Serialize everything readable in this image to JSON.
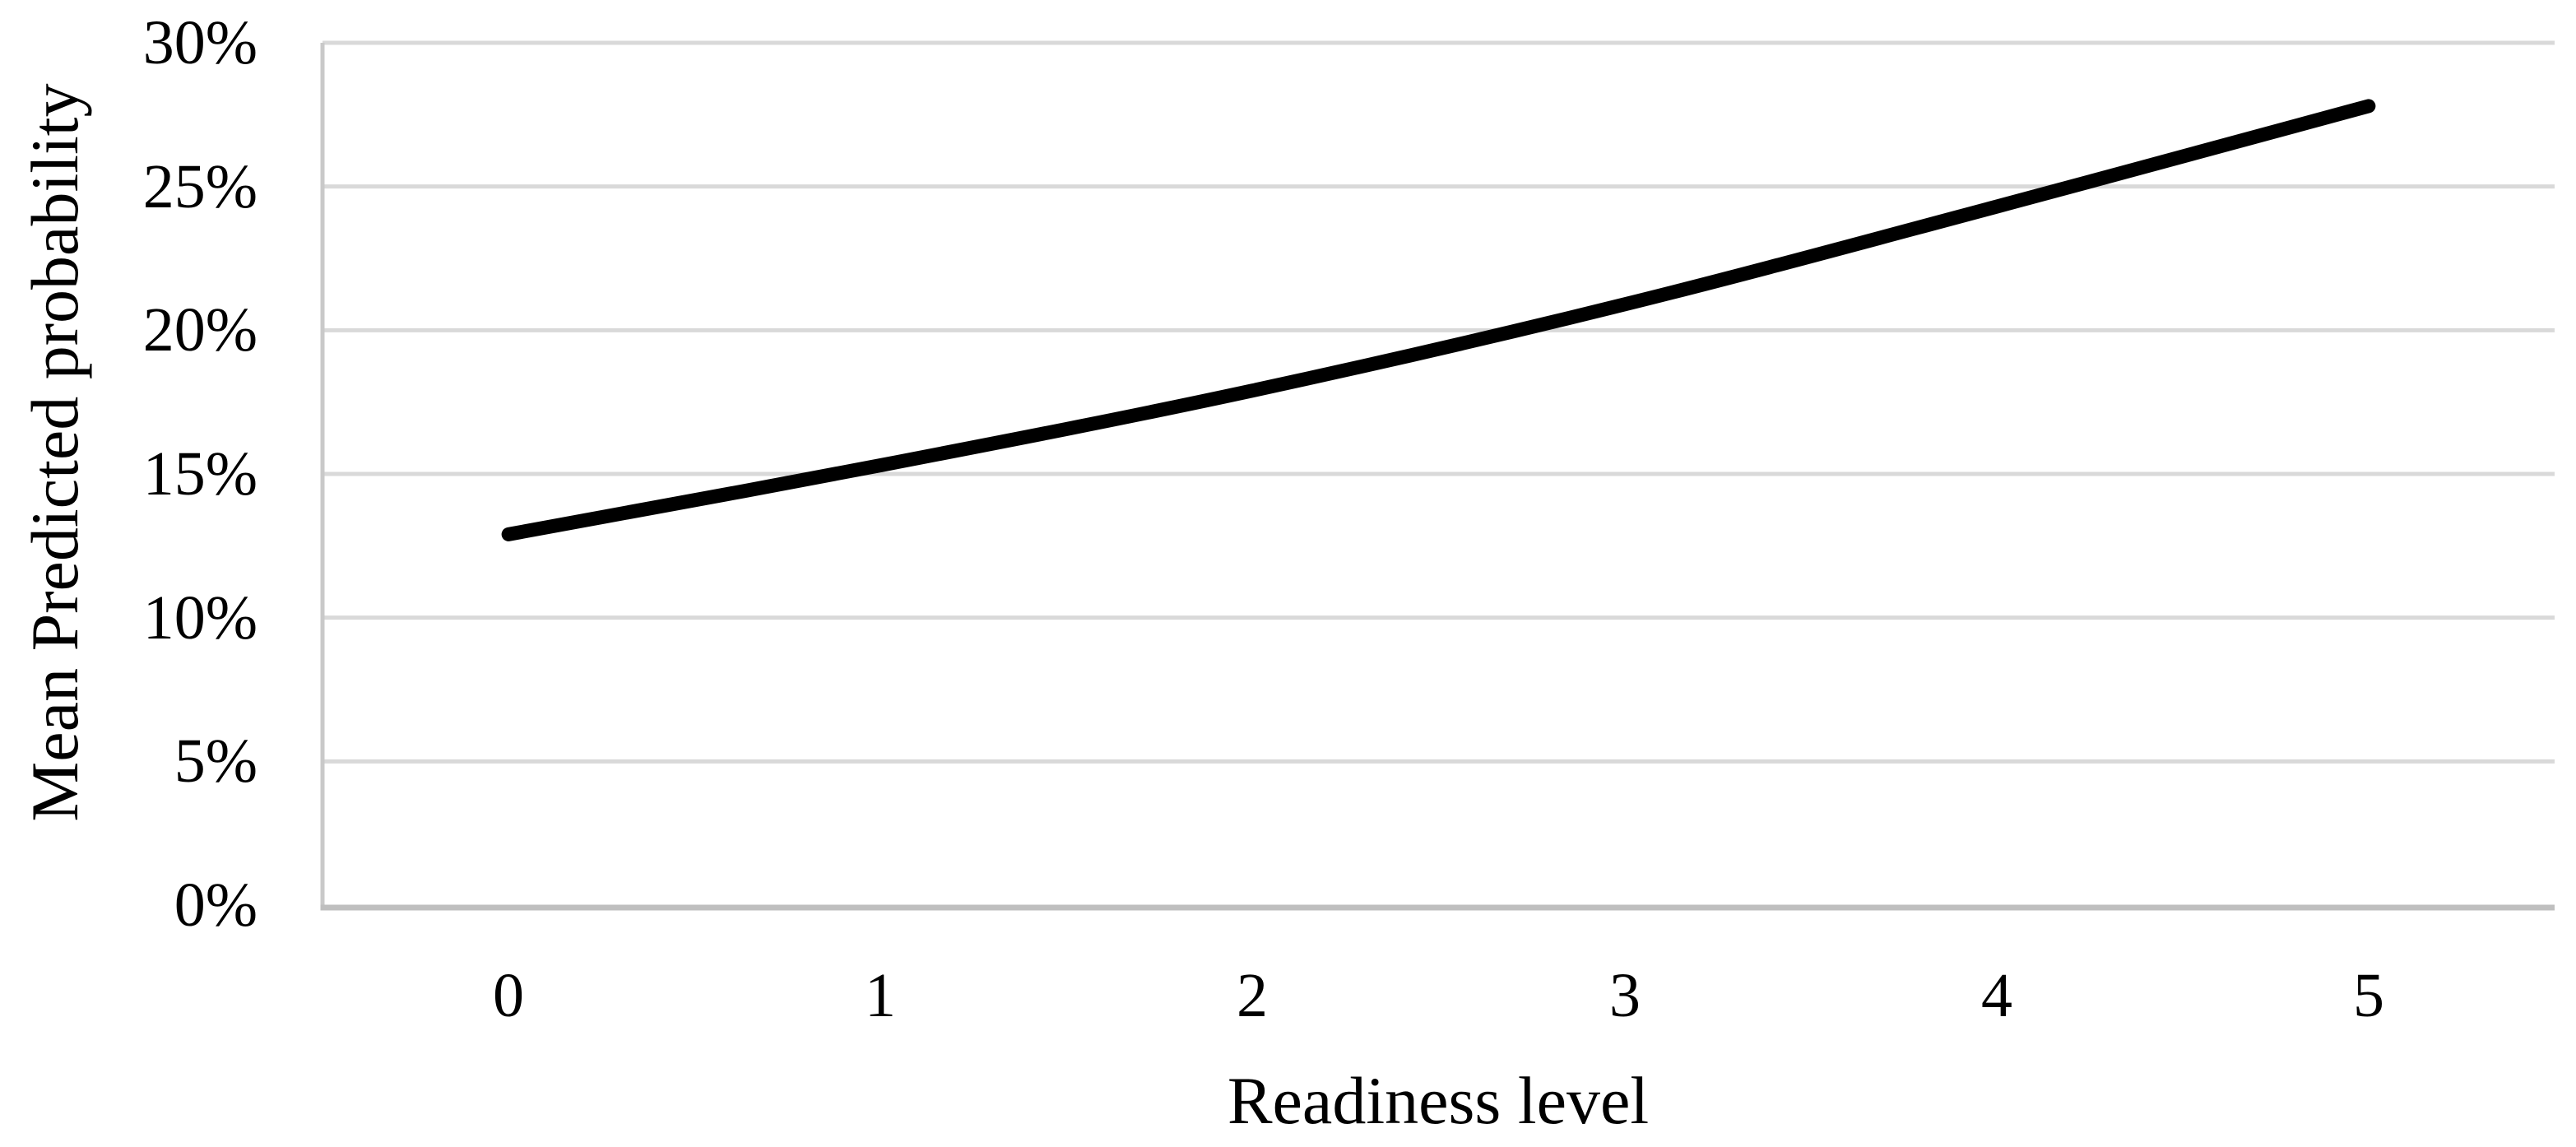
{
  "chart_data": {
    "type": "line",
    "x": [
      0,
      1,
      2,
      3,
      4,
      5
    ],
    "series": [
      {
        "name": "Mean predicted probability",
        "values": [
          12.9,
          15.3,
          17.9,
          20.9,
          24.3,
          27.8
        ]
      }
    ],
    "title": "",
    "xlabel": "Readiness level",
    "ylabel": "Mean Predicted probability",
    "ylim": [
      0,
      30
    ],
    "ytick_step": 5,
    "ytick_labels": [
      "0%",
      "5%",
      "10%",
      "15%",
      "20%",
      "25%",
      "30%"
    ],
    "xtick_labels": [
      "0",
      "1",
      "2",
      "3",
      "4",
      "5"
    ],
    "grid": "horizontal",
    "legend_position": "none",
    "colors": {
      "line": "#000000",
      "gridline": "#d9d9d9",
      "axis_line_x": "#bfbfbf",
      "axis_line_y": "#c9c9c9",
      "text": "#000000",
      "background": "#ffffff"
    }
  }
}
